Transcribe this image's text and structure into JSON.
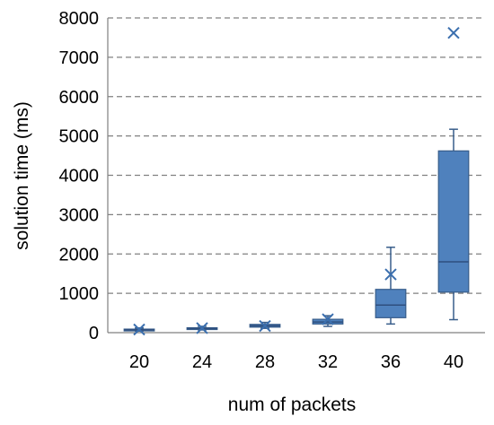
{
  "chart_data": {
    "type": "box",
    "title": "",
    "xlabel": "num of packets",
    "ylabel": "solution time (ms)",
    "ylim": [
      0,
      8000
    ],
    "y_ticks": [
      0,
      1000,
      2000,
      3000,
      4000,
      5000,
      6000,
      7000,
      8000
    ],
    "grid": "horizontal dashed",
    "categories": [
      "20",
      "24",
      "28",
      "32",
      "36",
      "40"
    ],
    "boxes": [
      {
        "category": "20",
        "min": 40,
        "q1": 60,
        "median": 75,
        "q3": 90,
        "max": 120,
        "mean": 80
      },
      {
        "category": "24",
        "min": 70,
        "q1": 90,
        "median": 105,
        "q3": 125,
        "max": 160,
        "mean": 115
      },
      {
        "category": "28",
        "min": 110,
        "q1": 140,
        "median": 175,
        "q3": 210,
        "max": 260,
        "mean": 170
      },
      {
        "category": "32",
        "min": 160,
        "q1": 220,
        "median": 270,
        "q3": 340,
        "max": 430,
        "mean": 340
      },
      {
        "category": "36",
        "min": 220,
        "q1": 380,
        "median": 700,
        "q3": 1100,
        "max": 2170,
        "mean": 1480
      },
      {
        "category": "40",
        "min": 330,
        "q1": 1030,
        "median": 1800,
        "q3": 4620,
        "max": 5170,
        "mean": 7620
      }
    ],
    "colors": {
      "box_fill": "#4f81bd",
      "box_stroke": "#385d8a",
      "grid": "#808080"
    }
  }
}
